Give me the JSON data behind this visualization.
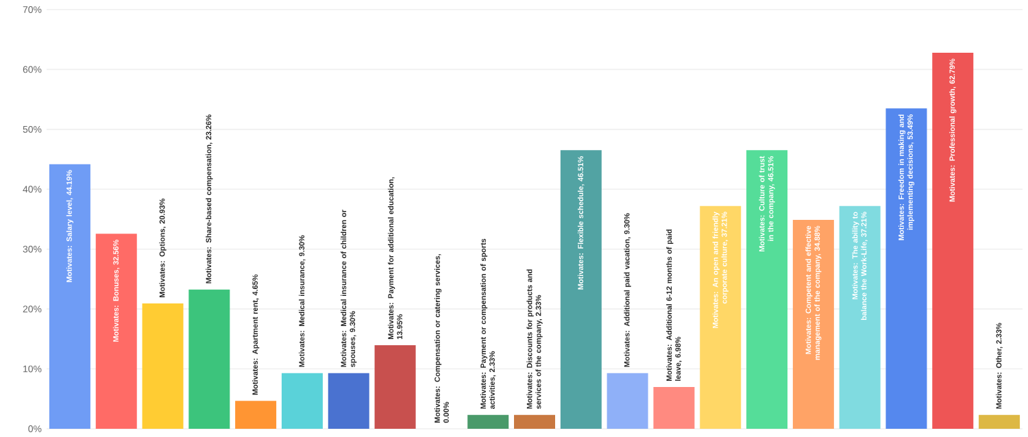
{
  "chart_data": {
    "type": "bar",
    "categories": [
      null,
      null,
      null,
      null,
      null,
      null,
      null,
      null,
      null,
      null,
      null,
      null,
      null,
      null,
      null,
      null,
      null,
      null,
      null,
      null,
      null
    ],
    "values": [
      44.19,
      32.56,
      20.93,
      23.26,
      4.65,
      9.3,
      9.3,
      13.95,
      0.0,
      2.33,
      2.33,
      46.51,
      9.3,
      6.98,
      37.21,
      46.51,
      34.88,
      37.21,
      53.49,
      62.79,
      2.33
    ],
    "colors": [
      "#6f9cf5",
      "#ff6b66",
      "#ffcc33",
      "#3cc47c",
      "#ff9533",
      "#5ad2d9",
      "#4a72d0",
      "#c8504e",
      "#999999",
      "#4a9a6a",
      "#c87840",
      "#52a3a3",
      "#8fb0f8",
      "#ff8a80",
      "#ffd766",
      "#55dd99",
      "#ffa366",
      "#80dbe0",
      "#5588ee",
      "#ee5555",
      "#ddb844"
    ],
    "value_labels": [
      "Motivates: Salary level, 44.19%",
      "Motivates: Bonuses, 32.56%",
      "Motivates: Options, 20.93%",
      "Motivates: Share-based compensation, 23.26%",
      "Motivates: Apartment rent, 4.65%",
      "Motivates: Medical insurance, 9.30%",
      "Motivates: Medical insurance of children or spouses, 9.30%",
      "Motivates: Payment for additional education, 13.95%",
      "Motivates: Compensation or catering services, 0.00%",
      "Motivates: Payment or compensation of sports activities, 2.33%",
      "Motivates: Discounts for products and services of the company, 2.33%",
      "Motivates: Flexible schedule, 46.51%",
      "Motivates: Additional paid vacation, 9.30%",
      "Motivates: Additional 6-12 months of paid leave, 6.98%",
      "Motivates: An open and friendly corporate culture, 37.21%",
      "Motivates: Culture of trust in the company, 46.51%",
      "Motivates: Competent and effective management of the company, 34.88%",
      "Motivates: The ability to balance the Work-Life, 37.21%",
      "Motivates: Freedom in making and implementing decisions, 53.49%",
      "Motivates: Professional growth, 62.79%",
      "Motivates: Other, 2.33%"
    ],
    "ylim": [
      0,
      70
    ],
    "yticks": [
      {
        "value": 0,
        "label": "0%"
      },
      {
        "value": 10,
        "label": "10%"
      },
      {
        "value": 20,
        "label": "20%"
      },
      {
        "value": 30,
        "label": "30%"
      },
      {
        "value": 40,
        "label": "40%"
      },
      {
        "value": 50,
        "label": "50%"
      },
      {
        "value": 60,
        "label": "60%"
      },
      {
        "value": 70,
        "label": "70%"
      }
    ],
    "grid": "y"
  }
}
